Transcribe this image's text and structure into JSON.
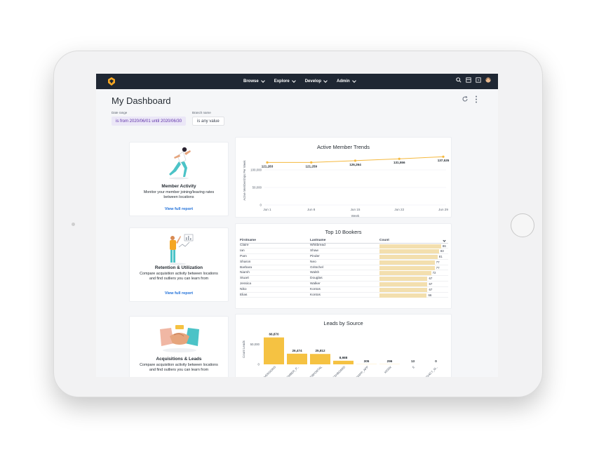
{
  "nav": {
    "items": [
      {
        "label": "Browse"
      },
      {
        "label": "Explore"
      },
      {
        "label": "Develop"
      },
      {
        "label": "Admin"
      }
    ],
    "icons": [
      "search-icon",
      "marketplace-icon",
      "help-icon",
      "user-avatar"
    ]
  },
  "page": {
    "title": "My Dashboard"
  },
  "filters": {
    "date_label": "Date range",
    "date_value": "is from 2020/06/01 until 2020/06/30",
    "branch_label": "Branch name",
    "branch_value": "is any value"
  },
  "left_cards": [
    {
      "title": "Member Activity",
      "desc1": "Monitor your member joining/leaving rates",
      "desc2": "between locations",
      "link": "View full report"
    },
    {
      "title": "Retention & Utilization",
      "desc1": "Compare acquisition activity between locations",
      "desc2": "and find outliers you can learn from",
      "link": "View full report"
    },
    {
      "title": "Acquisitions & Leads",
      "desc1": "Compare acquisition activity between locations",
      "desc2": "and find outliers you can learn from",
      "link": ""
    }
  ],
  "chart_data": [
    {
      "type": "line",
      "title": "Active Member Trends",
      "xlabel": "Week",
      "ylabel": "Active Memberships Per Week",
      "x": [
        "Jun 1",
        "Jun 8",
        "Jun 15",
        "Jun 22",
        "Jun 29"
      ],
      "values": [
        121283,
        121259,
        126264,
        131556,
        137535
      ],
      "labels": [
        "121,283",
        "121,259",
        "126,264",
        "131,556",
        "137,535"
      ],
      "yticks": [
        "100,000",
        "50,000",
        "0"
      ],
      "ylim": [
        0,
        140000
      ],
      "color": "#f5b93f"
    },
    {
      "type": "table",
      "title": "Top 10 Bookers",
      "columns": [
        "Firstname",
        "Lastname",
        "Count"
      ],
      "rows": [
        {
          "first": "Claire",
          "last": "Whitbread",
          "count": 86
        },
        {
          "first": "Ian",
          "last": "Shaw",
          "count": 83
        },
        {
          "first": "Pam",
          "last": "Pinder",
          "count": 81
        },
        {
          "first": "Sharon",
          "last": "Neo",
          "count": 77
        },
        {
          "first": "Barbara",
          "last": "Gritschel",
          "count": 77
        },
        {
          "first": "Niamh",
          "last": "Walsh",
          "count": 72
        },
        {
          "first": "Stuart",
          "last": "Douglas",
          "count": 67
        },
        {
          "first": "Jessica",
          "last": "Walker",
          "count": 67
        },
        {
          "first": "Niko",
          "last": "Kontos",
          "count": 67
        },
        {
          "first": "Elias",
          "last": "Kontos",
          "count": 66
        }
      ],
      "max_count": 90
    },
    {
      "type": "bar",
      "title": "Leads by Source",
      "ylabel": "Count Leads",
      "yticks": [
        "50,000",
        "0"
      ],
      "ylim": [
        0,
        75000
      ],
      "categories": [
        "CONVERSIONS",
        "MEMBER_P...",
        "WEBPORTAL",
        "DASHBOARD",
        "GYMAPP_APP",
        "KIOSK",
        "E",
        "LEGACY_M..."
      ],
      "values": [
        66870,
        26474,
        25812,
        8988,
        305,
        296,
        13,
        0
      ],
      "labels": [
        "66,870",
        "26,474",
        "25,812",
        "8,988",
        "305",
        "296",
        "13",
        "0"
      ],
      "color": "#f5c242"
    }
  ]
}
